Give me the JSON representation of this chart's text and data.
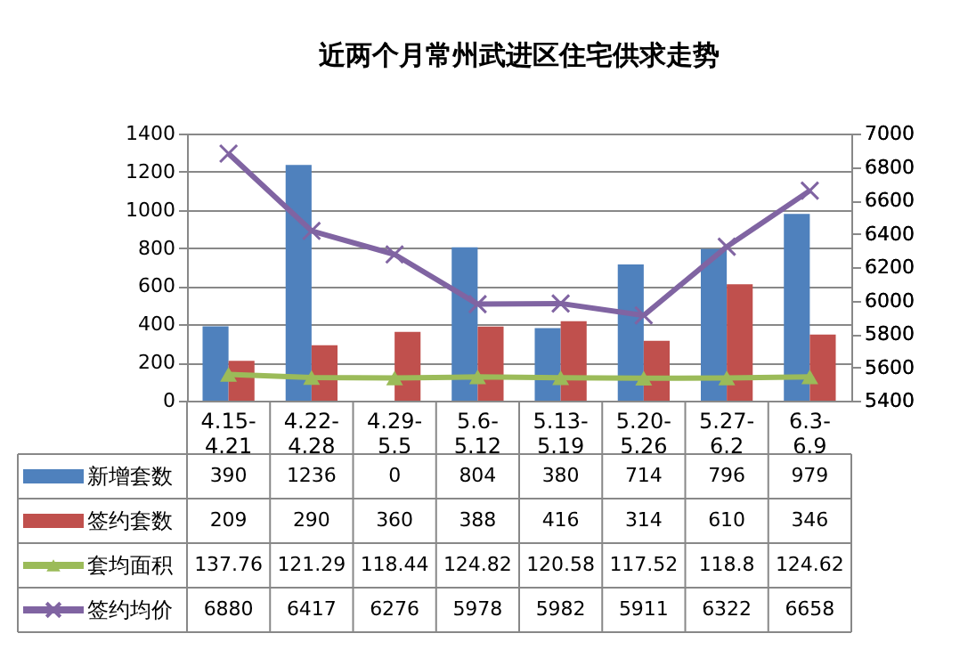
{
  "chart_data": {
    "type": "bar",
    "title": "近两个月常州武进区住宅供求走势",
    "categories": [
      "4.15-4.21",
      "4.22-4.28",
      "4.29-5.5",
      "5.6-5.12",
      "5.13-5.19",
      "5.20-5.26",
      "5.27-6.2",
      "6.3-6.9"
    ],
    "series": [
      {
        "name": "新增套数",
        "color": "#4f81bd",
        "values": [
          390,
          1236,
          0,
          804,
          380,
          714,
          796,
          979
        ]
      },
      {
        "name": "签约套数",
        "color": "#c0504d",
        "values": [
          209,
          290,
          360,
          388,
          416,
          314,
          610,
          346
        ]
      },
      {
        "name": "套均面积",
        "color": "#9bbb59",
        "type": "line",
        "marker": "triangle",
        "values": [
          137.76,
          121.29,
          118.44,
          124.82,
          120.58,
          117.52,
          118.8,
          124.62
        ]
      },
      {
        "name": "签约均价",
        "color": "#8064a2",
        "type": "line",
        "marker": "cross",
        "axis": "y2",
        "values": [
          6880,
          6417,
          6276,
          5978,
          5982,
          5911,
          6322,
          6658
        ]
      }
    ],
    "ylim": [
      0,
      1400
    ],
    "yticks": [
      0,
      200,
      400,
      600,
      800,
      1000,
      1200,
      1400
    ],
    "y2lim": [
      5400,
      7000
    ],
    "y2ticks": [
      5400,
      5600,
      5800,
      6000,
      6200,
      6400,
      6600,
      6800,
      7000
    ],
    "grid": "y",
    "legend": "bottom",
    "data_labels": true
  }
}
